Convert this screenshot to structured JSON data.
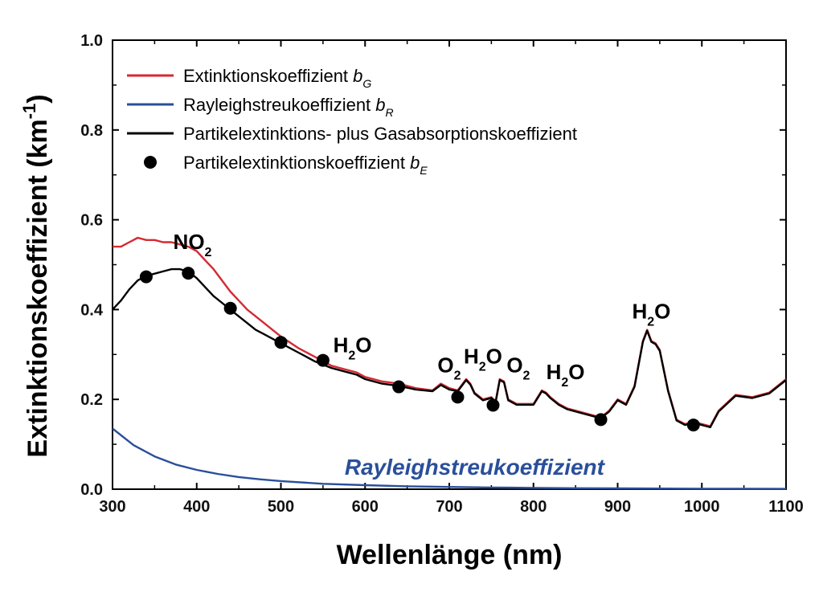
{
  "chart_data": {
    "type": "line",
    "xlabel": "Wellenlänge (nm)",
    "ylabel_main": "Extinktionskoeffizient  (km",
    "ylabel_sup": "-1",
    "ylabel_close": ")",
    "xlim": [
      300,
      1100
    ],
    "ylim": [
      0.0,
      1.0
    ],
    "x_ticks": [
      "300",
      "400",
      "500",
      "600",
      "700",
      "800",
      "900",
      "1000",
      "1100"
    ],
    "y_ticks": [
      "0.0",
      "0.2",
      "0.4",
      "0.6",
      "0.8",
      "1.0"
    ],
    "grid": false,
    "legend_position": "top-left",
    "legend": [
      {
        "text": "Extinktionskoeffizient ",
        "var": "b",
        "sub": "G",
        "color": "#d42a33",
        "marker": "line"
      },
      {
        "text": "Rayleighstreukoeffizient ",
        "var": "b",
        "sub": "R",
        "color": "#2a4f9a",
        "marker": "line"
      },
      {
        "text": "Partikelextinktions- plus Gasabsorptionskoeffizient",
        "var": "",
        "sub": "",
        "color": "#000000",
        "marker": "line"
      },
      {
        "text": "Partikelextinktionskoeffizient ",
        "var": "b",
        "sub": "E",
        "color": "#000000",
        "marker": "dot"
      }
    ],
    "series": [
      {
        "key": "bG",
        "color": "#d42a33",
        "x": [
          300,
          310,
          320,
          330,
          340,
          350,
          360,
          370,
          380,
          390,
          400,
          410,
          420,
          430,
          440,
          450,
          460,
          470,
          480,
          490,
          500,
          520,
          540,
          560,
          580,
          590,
          600,
          620,
          640,
          660,
          680,
          690,
          700,
          710,
          720,
          725,
          730,
          740,
          750,
          755,
          760,
          765,
          770,
          780,
          800,
          810,
          815,
          820,
          830,
          840,
          860,
          880,
          890,
          900,
          910,
          920,
          930,
          935,
          940,
          945,
          950,
          960,
          970,
          980,
          990,
          1000,
          1010,
          1020,
          1040,
          1060,
          1080,
          1100
        ],
        "y": [
          0.54,
          0.54,
          0.55,
          0.56,
          0.555,
          0.555,
          0.55,
          0.55,
          0.545,
          0.54,
          0.53,
          0.51,
          0.49,
          0.465,
          0.44,
          0.42,
          0.4,
          0.385,
          0.37,
          0.355,
          0.34,
          0.315,
          0.295,
          0.275,
          0.265,
          0.26,
          0.25,
          0.24,
          0.235,
          0.225,
          0.22,
          0.235,
          0.225,
          0.22,
          0.245,
          0.235,
          0.215,
          0.2,
          0.205,
          0.195,
          0.245,
          0.24,
          0.2,
          0.19,
          0.19,
          0.22,
          0.215,
          0.205,
          0.19,
          0.18,
          0.17,
          0.16,
          0.175,
          0.2,
          0.19,
          0.23,
          0.33,
          0.355,
          0.33,
          0.325,
          0.31,
          0.22,
          0.155,
          0.145,
          0.15,
          0.145,
          0.14,
          0.175,
          0.21,
          0.205,
          0.215,
          0.245
        ]
      },
      {
        "key": "bR",
        "color": "#2a4f9a",
        "x": [
          300,
          325,
          350,
          375,
          400,
          425,
          450,
          475,
          500,
          550,
          600,
          650,
          700,
          750,
          800,
          850,
          900,
          950,
          1000,
          1050,
          1100
        ],
        "y": [
          0.135,
          0.098,
          0.073,
          0.055,
          0.043,
          0.034,
          0.027,
          0.022,
          0.018,
          0.012,
          0.009,
          0.0065,
          0.005,
          0.0037,
          0.0029,
          0.0022,
          0.0018,
          0.0014,
          0.0011,
          0.0009,
          0.0008
        ]
      },
      {
        "key": "particle_gas",
        "color": "#000000",
        "x": [
          300,
          310,
          320,
          330,
          340,
          350,
          360,
          370,
          380,
          390,
          400,
          410,
          420,
          430,
          440,
          450,
          460,
          470,
          480,
          490,
          500,
          520,
          540,
          560,
          580,
          590,
          600,
          620,
          640,
          660,
          680,
          690,
          700,
          710,
          720,
          725,
          730,
          740,
          750,
          755,
          760,
          765,
          770,
          780,
          800,
          810,
          815,
          820,
          830,
          840,
          860,
          880,
          890,
          900,
          910,
          920,
          930,
          935,
          940,
          945,
          950,
          960,
          970,
          980,
          990,
          1000,
          1010,
          1020,
          1040,
          1060,
          1080,
          1100
        ],
        "y": [
          0.4,
          0.42,
          0.445,
          0.465,
          0.475,
          0.48,
          0.485,
          0.49,
          0.49,
          0.485,
          0.47,
          0.45,
          0.43,
          0.415,
          0.4,
          0.385,
          0.37,
          0.355,
          0.345,
          0.335,
          0.325,
          0.305,
          0.285,
          0.27,
          0.26,
          0.255,
          0.245,
          0.235,
          0.23,
          0.222,
          0.218,
          0.232,
          0.222,
          0.218,
          0.243,
          0.233,
          0.213,
          0.198,
          0.203,
          0.193,
          0.243,
          0.238,
          0.198,
          0.188,
          0.188,
          0.218,
          0.213,
          0.203,
          0.188,
          0.178,
          0.168,
          0.158,
          0.173,
          0.198,
          0.188,
          0.228,
          0.328,
          0.353,
          0.328,
          0.323,
          0.308,
          0.218,
          0.153,
          0.143,
          0.148,
          0.143,
          0.138,
          0.173,
          0.208,
          0.203,
          0.213,
          0.243
        ]
      }
    ],
    "points": {
      "key": "bE",
      "color": "#000000",
      "x": [
        340,
        390,
        440,
        500,
        550,
        640,
        710,
        752,
        880,
        990
      ],
      "y": [
        0.473,
        0.481,
        0.403,
        0.327,
        0.287,
        0.228,
        0.205,
        0.187,
        0.155,
        0.143
      ]
    },
    "annotations": [
      {
        "main": "NO",
        "sub": "2",
        "sub_first": false,
        "x": 395,
        "y": 0.535
      },
      {
        "main": "H",
        "sub": "2",
        "tail": "O",
        "x": 585,
        "y": 0.305
      },
      {
        "main": "O",
        "sub": "2",
        "tail": "",
        "x": 700,
        "y": 0.26
      },
      {
        "main": "H",
        "sub": "2",
        "tail": "O",
        "x": 740,
        "y": 0.28
      },
      {
        "main": "O",
        "sub": "2",
        "tail": "",
        "x": 782,
        "y": 0.26
      },
      {
        "main": "H",
        "sub": "2",
        "tail": "O",
        "x": 838,
        "y": 0.245
      },
      {
        "main": "H",
        "sub": "2",
        "tail": "O",
        "x": 940,
        "y": 0.38
      }
    ],
    "rayleigh_label": {
      "text": "Rayleighstreukoeffizient",
      "color": "#2a4f9a",
      "x": 730,
      "y": 0.05
    }
  }
}
